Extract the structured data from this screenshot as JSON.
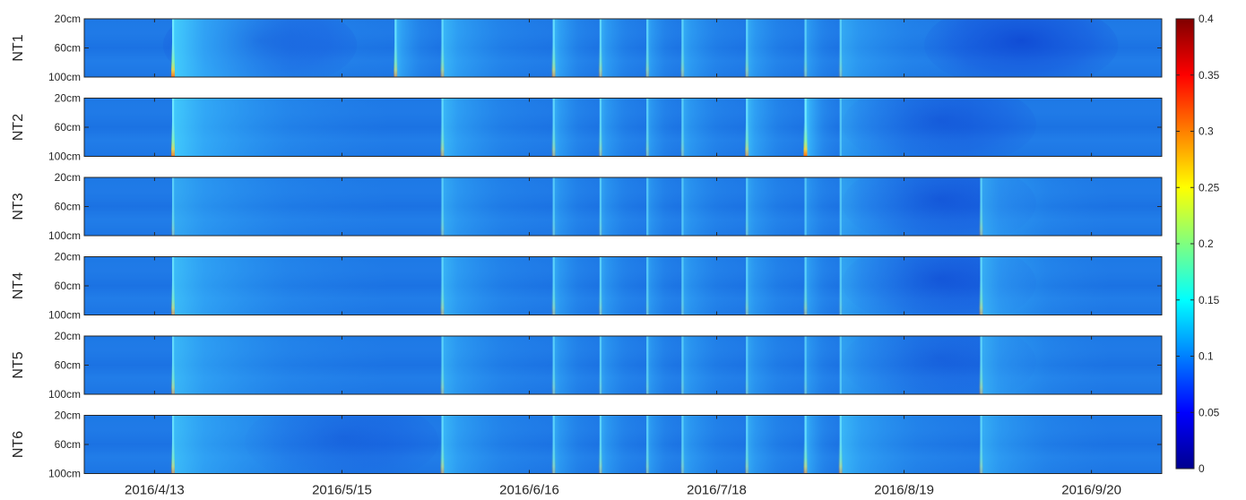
{
  "chart_data": {
    "type": "heatmap",
    "panels": [
      {
        "name": "NT1",
        "events": [
          {
            "d": "2016-04-16",
            "a": 0.95
          },
          {
            "d": "2016-05-24",
            "a": 0.75
          },
          {
            "d": "2016-06-01",
            "a": 0.7
          },
          {
            "d": "2016-06-20",
            "a": 0.75
          },
          {
            "d": "2016-06-28",
            "a": 0.65
          },
          {
            "d": "2016-07-06",
            "a": 0.6
          },
          {
            "d": "2016-07-12",
            "a": 0.6
          },
          {
            "d": "2016-07-23",
            "a": 0.6
          },
          {
            "d": "2016-08-02",
            "a": 0.55
          },
          {
            "d": "2016-08-08",
            "a": 0.55
          }
        ],
        "dry": [
          {
            "d": "2016-05-01",
            "a": 0.9
          },
          {
            "d": "2016-09-08",
            "a": 0.8
          }
        ]
      },
      {
        "name": "NT2",
        "events": [
          {
            "d": "2016-04-16",
            "a": 0.9
          },
          {
            "d": "2016-06-01",
            "a": 0.7
          },
          {
            "d": "2016-06-20",
            "a": 0.65
          },
          {
            "d": "2016-06-28",
            "a": 0.6
          },
          {
            "d": "2016-07-06",
            "a": 0.55
          },
          {
            "d": "2016-07-12",
            "a": 0.55
          },
          {
            "d": "2016-07-23",
            "a": 0.75
          },
          {
            "d": "2016-08-02",
            "a": 1.0
          },
          {
            "d": "2016-08-08",
            "a": 0.45
          }
        ],
        "dry": [
          {
            "d": "2016-08-25",
            "a": 0.6
          }
        ]
      },
      {
        "name": "NT3",
        "events": [
          {
            "d": "2016-04-16",
            "a": 0.55
          },
          {
            "d": "2016-06-01",
            "a": 0.55
          },
          {
            "d": "2016-06-20",
            "a": 0.5
          },
          {
            "d": "2016-06-28",
            "a": 0.5
          },
          {
            "d": "2016-07-06",
            "a": 0.45
          },
          {
            "d": "2016-07-12",
            "a": 0.45
          },
          {
            "d": "2016-07-23",
            "a": 0.5
          },
          {
            "d": "2016-08-02",
            "a": 0.45
          },
          {
            "d": "2016-08-08",
            "a": 0.45
          },
          {
            "d": "2016-09-01",
            "a": 0.6
          }
        ],
        "dry": [
          {
            "d": "2016-08-25",
            "a": 0.7
          }
        ]
      },
      {
        "name": "NT4",
        "events": [
          {
            "d": "2016-04-16",
            "a": 0.75
          },
          {
            "d": "2016-06-01",
            "a": 0.65
          },
          {
            "d": "2016-06-20",
            "a": 0.6
          },
          {
            "d": "2016-06-28",
            "a": 0.55
          },
          {
            "d": "2016-07-06",
            "a": 0.5
          },
          {
            "d": "2016-07-12",
            "a": 0.5
          },
          {
            "d": "2016-07-23",
            "a": 0.55
          },
          {
            "d": "2016-08-02",
            "a": 0.6
          },
          {
            "d": "2016-08-08",
            "a": 0.5
          },
          {
            "d": "2016-09-01",
            "a": 0.7
          }
        ],
        "dry": [
          {
            "d": "2016-08-25",
            "a": 0.75
          }
        ]
      },
      {
        "name": "NT5",
        "events": [
          {
            "d": "2016-04-16",
            "a": 0.7
          },
          {
            "d": "2016-06-01",
            "a": 0.6
          },
          {
            "d": "2016-06-20",
            "a": 0.55
          },
          {
            "d": "2016-06-28",
            "a": 0.5
          },
          {
            "d": "2016-07-06",
            "a": 0.5
          },
          {
            "d": "2016-07-12",
            "a": 0.5
          },
          {
            "d": "2016-07-23",
            "a": 0.5
          },
          {
            "d": "2016-08-02",
            "a": 0.5
          },
          {
            "d": "2016-08-08",
            "a": 0.45
          },
          {
            "d": "2016-09-01",
            "a": 0.65
          }
        ],
        "dry": [
          {
            "d": "2016-08-25",
            "a": 0.5
          }
        ]
      },
      {
        "name": "NT6",
        "events": [
          {
            "d": "2016-04-16",
            "a": 0.75
          },
          {
            "d": "2016-06-01",
            "a": 0.7
          },
          {
            "d": "2016-06-20",
            "a": 0.6
          },
          {
            "d": "2016-06-28",
            "a": 0.6
          },
          {
            "d": "2016-07-06",
            "a": 0.55
          },
          {
            "d": "2016-07-12",
            "a": 0.55
          },
          {
            "d": "2016-07-23",
            "a": 0.6
          },
          {
            "d": "2016-08-02",
            "a": 0.75
          },
          {
            "d": "2016-08-08",
            "a": 0.7
          },
          {
            "d": "2016-09-01",
            "a": 0.6
          }
        ],
        "dry": [
          {
            "d": "2016-05-15",
            "a": 0.45
          }
        ]
      }
    ],
    "y_ticks": [
      "20cm",
      "60cm",
      "100cm"
    ],
    "y_range": [
      20,
      100
    ],
    "x_range": [
      "2016-04-01",
      "2016-10-02"
    ],
    "x_ticks": [
      {
        "label": "2016/4/13",
        "date": "2016-04-13"
      },
      {
        "label": "2016/5/15",
        "date": "2016-05-15"
      },
      {
        "label": "2016/6/16",
        "date": "2016-06-16"
      },
      {
        "label": "2016/7/18",
        "date": "2016-07-18"
      },
      {
        "label": "2016/8/19",
        "date": "2016-08-19"
      },
      {
        "label": "2016/9/20",
        "date": "2016-09-20"
      }
    ],
    "colorbar": {
      "colormap": "jet",
      "range": [
        0,
        0.4
      ],
      "ticks": [
        {
          "label": "0",
          "value": 0
        },
        {
          "label": "0.05",
          "value": 0.05
        },
        {
          "label": "0.1",
          "value": 0.1
        },
        {
          "label": "0.15",
          "value": 0.15
        },
        {
          "label": "0.2",
          "value": 0.2
        },
        {
          "label": "0.25",
          "value": 0.25
        },
        {
          "label": "0.3",
          "value": 0.3
        },
        {
          "label": "0.35",
          "value": 0.35
        },
        {
          "label": "0.4",
          "value": 0.4
        }
      ]
    }
  }
}
